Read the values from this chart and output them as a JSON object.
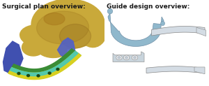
{
  "title_left": "Surgical plan overview:",
  "title_right": "Guide design overview:",
  "title_fontsize": 6.5,
  "title_color": "#1a1a1a",
  "bg_color": "#ffffff",
  "left_panel": {
    "skull_color": "#c9a93a",
    "skull_shadow": "#a07820",
    "bone_graft_color": "#3a8c35",
    "fibula_color": "#d8d020",
    "cyan_color": "#40c8c0",
    "blue_resect": "#4050b0",
    "blue_condyle": "#5060c8"
  },
  "right_panel": {
    "mandible_color": "#90b8cc",
    "mandible_edge": "#7090a8",
    "guide_color": "#c8d4dc",
    "guide_edge": "#999999",
    "plate_color": "#d4dce4",
    "plate_edge": "#888888"
  }
}
